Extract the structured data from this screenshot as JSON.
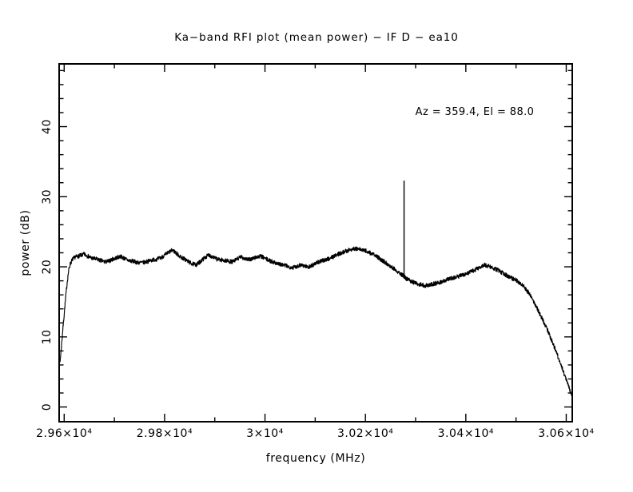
{
  "colors": {
    "foreground": "#000000",
    "background": "#ffffff"
  },
  "chart_data": {
    "type": "line",
    "title": "Ka−band RFI plot (mean power) − IF D − ea10",
    "xlabel": "frequency (MHz)",
    "ylabel": "power (dB)",
    "annotation": "Az = 359.4, El = 88.0",
    "legend": null,
    "grid": false,
    "x_range": [
      29590,
      30612
    ],
    "y_range": [
      -2.1,
      48.95
    ],
    "x_major_ticks": [
      {
        "value": 29600,
        "label": "2.96×10⁴"
      },
      {
        "value": 29800,
        "label": "2.98×10⁴"
      },
      {
        "value": 30000,
        "label": "3×10⁴"
      },
      {
        "value": 30200,
        "label": "3.02×10⁴"
      },
      {
        "value": 30400,
        "label": "3.04×10⁴"
      },
      {
        "value": 30600,
        "label": "3.06×10⁴"
      }
    ],
    "x_minor_ticks": [
      29700,
      29900,
      30100,
      30300,
      30500
    ],
    "y_major_ticks": [
      {
        "value": 0,
        "label": "0"
      },
      {
        "value": 10,
        "label": "10"
      },
      {
        "value": 20,
        "label": "20"
      },
      {
        "value": 30,
        "label": "30"
      },
      {
        "value": 40,
        "label": "40"
      }
    ],
    "y_minor_step": 2,
    "line_color": "#000000",
    "noise_db": 0.3,
    "spike": {
      "freq": 30277,
      "top_db": 32.3
    },
    "envelope": [
      [
        29590,
        5.8
      ],
      [
        29592,
        6.6
      ],
      [
        29594,
        8.2
      ],
      [
        29597,
        10.8
      ],
      [
        29600,
        13.2
      ],
      [
        29603,
        15.6
      ],
      [
        29606,
        17.8
      ],
      [
        29609,
        19.5
      ],
      [
        29612,
        20.4
      ],
      [
        29616,
        21.0
      ],
      [
        29622,
        21.4
      ],
      [
        29632,
        21.6
      ],
      [
        29640,
        21.8
      ],
      [
        29648,
        21.5
      ],
      [
        29656,
        21.2
      ],
      [
        29664,
        21.1
      ],
      [
        29673,
        20.9
      ],
      [
        29681,
        20.7
      ],
      [
        29689,
        20.8
      ],
      [
        29697,
        21.1
      ],
      [
        29705,
        21.3
      ],
      [
        29712,
        21.5
      ],
      [
        29720,
        21.2
      ],
      [
        29728,
        20.9
      ],
      [
        29737,
        20.8
      ],
      [
        29747,
        20.6
      ],
      [
        29757,
        20.6
      ],
      [
        29767,
        20.8
      ],
      [
        29777,
        21.0
      ],
      [
        29785,
        21.1
      ],
      [
        29793,
        21.3
      ],
      [
        29801,
        21.7
      ],
      [
        29809,
        22.1
      ],
      [
        29816,
        22.4
      ],
      [
        29824,
        21.9
      ],
      [
        29832,
        21.4
      ],
      [
        29840,
        21.1
      ],
      [
        29848,
        20.7
      ],
      [
        29856,
        20.4
      ],
      [
        29864,
        20.3
      ],
      [
        29872,
        20.8
      ],
      [
        29880,
        21.3
      ],
      [
        29888,
        21.7
      ],
      [
        29896,
        21.4
      ],
      [
        29904,
        21.1
      ],
      [
        29912,
        21.0
      ],
      [
        29920,
        20.9
      ],
      [
        29928,
        20.8
      ],
      [
        29936,
        20.7
      ],
      [
        29944,
        21.1
      ],
      [
        29952,
        21.4
      ],
      [
        29960,
        21.2
      ],
      [
        29968,
        21.0
      ],
      [
        29976,
        21.2
      ],
      [
        29984,
        21.4
      ],
      [
        29992,
        21.5
      ],
      [
        30000,
        21.2
      ],
      [
        30008,
        20.9
      ],
      [
        30016,
        20.7
      ],
      [
        30024,
        20.5
      ],
      [
        30032,
        20.3
      ],
      [
        30040,
        20.2
      ],
      [
        30048,
        20.0
      ],
      [
        30056,
        19.9
      ],
      [
        30064,
        20.1
      ],
      [
        30072,
        20.3
      ],
      [
        30080,
        20.1
      ],
      [
        30088,
        20.0
      ],
      [
        30096,
        20.3
      ],
      [
        30104,
        20.6
      ],
      [
        30116,
        20.9
      ],
      [
        30128,
        21.2
      ],
      [
        30140,
        21.6
      ],
      [
        30152,
        22.0
      ],
      [
        30164,
        22.3
      ],
      [
        30176,
        22.6
      ],
      [
        30188,
        22.5
      ],
      [
        30200,
        22.3
      ],
      [
        30212,
        21.9
      ],
      [
        30224,
        21.4
      ],
      [
        30236,
        20.8
      ],
      [
        30248,
        20.2
      ],
      [
        30260,
        19.6
      ],
      [
        30272,
        18.9
      ],
      [
        30284,
        18.2
      ],
      [
        30296,
        17.8
      ],
      [
        30308,
        17.5
      ],
      [
        30320,
        17.3
      ],
      [
        30332,
        17.5
      ],
      [
        30344,
        17.7
      ],
      [
        30356,
        18.0
      ],
      [
        30368,
        18.3
      ],
      [
        30380,
        18.5
      ],
      [
        30392,
        18.8
      ],
      [
        30404,
        19.1
      ],
      [
        30416,
        19.5
      ],
      [
        30428,
        19.9
      ],
      [
        30436,
        20.3
      ],
      [
        30444,
        20.1
      ],
      [
        30452,
        19.9
      ],
      [
        30464,
        19.5
      ],
      [
        30476,
        19.0
      ],
      [
        30488,
        18.5
      ],
      [
        30500,
        18.1
      ],
      [
        30508,
        17.7
      ],
      [
        30516,
        17.2
      ],
      [
        30524,
        16.4
      ],
      [
        30532,
        15.5
      ],
      [
        30540,
        14.4
      ],
      [
        30548,
        13.2
      ],
      [
        30556,
        12.0
      ],
      [
        30564,
        10.8
      ],
      [
        30572,
        9.3
      ],
      [
        30580,
        7.9
      ],
      [
        30588,
        6.3
      ],
      [
        30596,
        4.7
      ],
      [
        30602,
        3.7
      ],
      [
        30608,
        2.2
      ],
      [
        30612,
        1.5
      ]
    ]
  }
}
